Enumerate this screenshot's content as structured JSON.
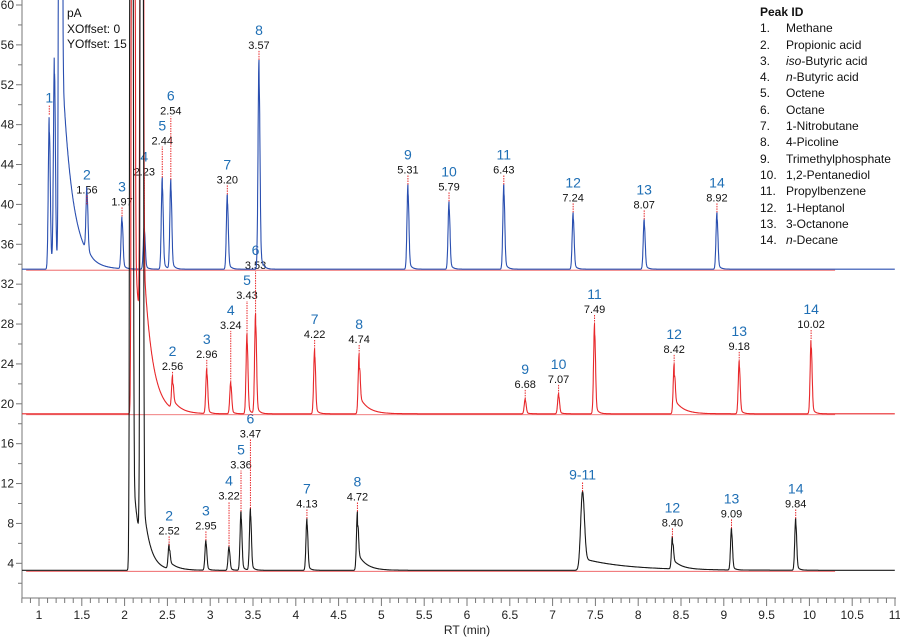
{
  "chart_data": {
    "type": "line",
    "title": "",
    "xlabel": "RT (min)",
    "ylabel": "pA",
    "xlim": [
      0.8,
      11
    ],
    "ylim": [
      0.5,
      60
    ],
    "x_ticks": [
      "1",
      "1.5",
      "2",
      "2.5",
      "3",
      "3.5",
      "4",
      "4.5",
      "5",
      "5.5",
      "6",
      "6.5",
      "7",
      "7.5",
      "8",
      "8.5",
      "9",
      "9.5",
      "10",
      "10.5",
      "11"
    ],
    "y_ticks": [
      "4",
      "8",
      "12",
      "16",
      "20",
      "24",
      "28",
      "32",
      "36",
      "40",
      "44",
      "48",
      "52",
      "56",
      "60"
    ],
    "annotations": {
      "unit": "pA",
      "xoffset": "XOffset: 0",
      "yoffset": "YOffset: 15"
    },
    "series": [
      {
        "name": "blue",
        "color": "#2a4fb0",
        "baseline": 33.5,
        "solvent": [
          {
            "rt": 1.25,
            "h": 400,
            "tau": 0.12,
            "f": 0.06
          },
          {
            "rt": 1.18,
            "h": 21.3,
            "tau": 0.03,
            "f": 0.1
          }
        ],
        "peaks": [
          {
            "id": "1",
            "rt": 1.12,
            "h": 49,
            "label": ""
          },
          {
            "id": "2",
            "rt": 1.56,
            "h": 40,
            "label": "1.56"
          },
          {
            "id": "3",
            "rt": 1.97,
            "h": 38.8,
            "label": "1.97"
          },
          {
            "id": "4",
            "rt": 2.23,
            "h": 37.8,
            "label": "2.23"
          },
          {
            "id": "5",
            "rt": 2.44,
            "h": 42.7,
            "label": "2.44"
          },
          {
            "id": "6",
            "rt": 2.54,
            "h": 42.5,
            "label": "2.54"
          },
          {
            "id": "7",
            "rt": 3.2,
            "h": 41,
            "label": "3.20"
          },
          {
            "id": "8",
            "rt": 3.57,
            "h": 54.5,
            "label": "3.57"
          },
          {
            "id": "9",
            "rt": 5.31,
            "h": 42,
            "label": "5.31"
          },
          {
            "id": "10",
            "rt": 5.79,
            "h": 40.3,
            "label": "5.79"
          },
          {
            "id": "11",
            "rt": 6.43,
            "h": 42,
            "label": "6.43"
          },
          {
            "id": "12",
            "rt": 7.24,
            "h": 39.2,
            "label": "7.24"
          },
          {
            "id": "13",
            "rt": 8.07,
            "h": 38.5,
            "label": "8.07"
          },
          {
            "id": "14",
            "rt": 8.92,
            "h": 39.2,
            "label": "8.92"
          }
        ]
      },
      {
        "name": "red",
        "color": "#e8282b",
        "baseline": 19,
        "solvent": [
          {
            "rt": 2.1,
            "h": 400,
            "tau": 0.1,
            "f": 0.05
          },
          {
            "rt": 2.2,
            "h": 300,
            "tau": 0.1,
            "f": 0.04
          }
        ],
        "peaks": [
          {
            "id": "2",
            "rt": 2.56,
            "h": 22.3,
            "label": "2.56"
          },
          {
            "id": "3",
            "rt": 2.96,
            "h": 23.5,
            "label": "2.96"
          },
          {
            "id": "4",
            "rt": 3.24,
            "h": 22.2,
            "label": "3.24"
          },
          {
            "id": "5",
            "rt": 3.43,
            "h": 27,
            "label": "3.43"
          },
          {
            "id": "6",
            "rt": 3.53,
            "h": 29,
            "label": "3.53"
          },
          {
            "id": "7",
            "rt": 4.22,
            "h": 25.5,
            "label": "4.22"
          },
          {
            "id": "8",
            "rt": 4.74,
            "h": 25,
            "label": "4.74"
          },
          {
            "id": "9",
            "rt": 6.68,
            "h": 20.5,
            "label": "6.68"
          },
          {
            "id": "10",
            "rt": 7.07,
            "h": 21,
            "label": "7.07"
          },
          {
            "id": "11",
            "rt": 7.49,
            "h": 28,
            "label": "7.49"
          },
          {
            "id": "12",
            "rt": 8.42,
            "h": 24,
            "label": "8.42"
          },
          {
            "id": "13",
            "rt": 9.18,
            "h": 24.3,
            "label": "9.18"
          },
          {
            "id": "14",
            "rt": 10.02,
            "h": 26.5,
            "label": "10.02"
          }
        ]
      },
      {
        "name": "black",
        "color": "#1a1a1a",
        "baseline": 3.3,
        "solvent": [
          {
            "rt": 2.08,
            "h": 400,
            "tau": 0.08,
            "f": 0.03
          },
          {
            "rt": 2.2,
            "h": 300,
            "tau": 0.08,
            "f": 0.02
          }
        ],
        "peaks": [
          {
            "id": "2",
            "rt": 2.52,
            "h": 5.8,
            "label": "2.52"
          },
          {
            "id": "3",
            "rt": 2.95,
            "h": 6.3,
            "label": "2.95"
          },
          {
            "id": "4",
            "rt": 3.22,
            "h": 5.7,
            "label": "3.22"
          },
          {
            "id": "5",
            "rt": 3.36,
            "h": 9.2,
            "label": "3.36"
          },
          {
            "id": "6",
            "rt": 3.47,
            "h": 9.5,
            "label": "3.47"
          },
          {
            "id": "7",
            "rt": 4.13,
            "h": 8.5,
            "label": "4.13"
          },
          {
            "id": "8",
            "rt": 4.72,
            "h": 9.2,
            "label": "4.72"
          },
          {
            "id": "9-11",
            "rt": 7.35,
            "h": 11.2,
            "label": ""
          },
          {
            "id": "12",
            "rt": 8.4,
            "h": 6.6,
            "label": "8.40"
          },
          {
            "id": "13",
            "rt": 9.09,
            "h": 7.5,
            "label": "9.09"
          },
          {
            "id": "14",
            "rt": 9.84,
            "h": 8.5,
            "label": "9.84"
          }
        ]
      }
    ],
    "legend": {
      "title": "Peak ID",
      "placement": "top-right",
      "items": [
        {
          "n": "1.",
          "name": "Methane"
        },
        {
          "n": "2.",
          "name": "Propionic acid"
        },
        {
          "n": "3.",
          "name": "iso-Butyric acid"
        },
        {
          "n": "4.",
          "name": "n-Butyric acid"
        },
        {
          "n": "5.",
          "name": "Octene"
        },
        {
          "n": "6.",
          "name": "Octane"
        },
        {
          "n": "7.",
          "name": "1-Nitrobutane"
        },
        {
          "n": "8.",
          "name": "4-Picoline"
        },
        {
          "n": "9.",
          "name": "Trimethylphosphate"
        },
        {
          "n": "10.",
          "name": "1,2-Pentanediol"
        },
        {
          "n": "11.",
          "name": "Propylbenzene"
        },
        {
          "n": "12.",
          "name": "1-Heptanol"
        },
        {
          "n": "13.",
          "name": "3-Octanone"
        },
        {
          "n": "14.",
          "name": "n-Decane"
        }
      ]
    }
  }
}
